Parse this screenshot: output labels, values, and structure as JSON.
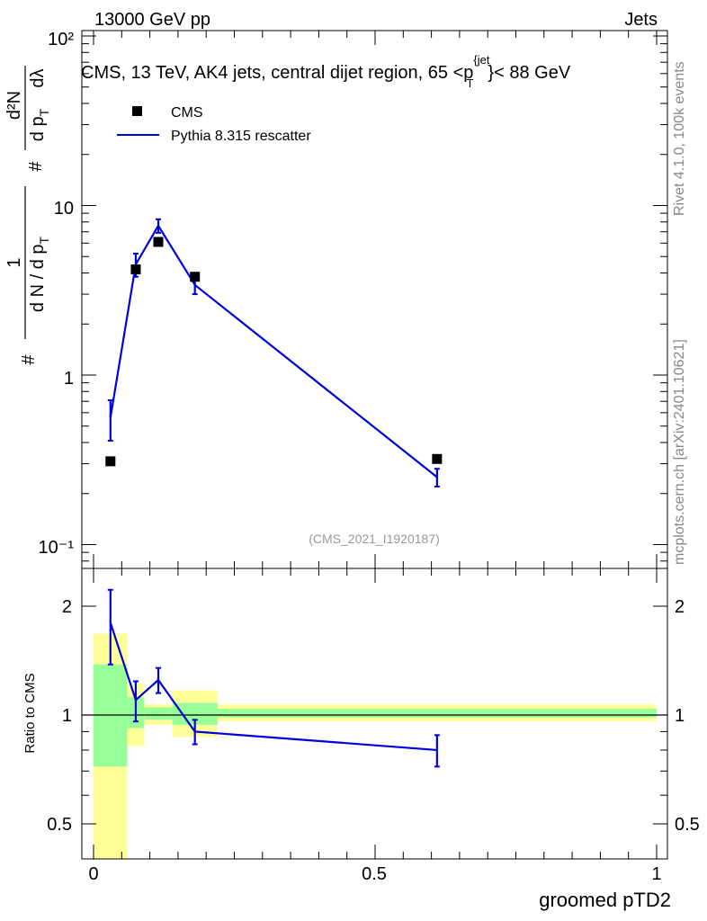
{
  "header": {
    "beam": "13000 GeV pp",
    "category": "Jets",
    "title_prefix": "CMS, 13 TeV, AK4 jets, central dijet region, 65 <",
    "title_p": "p",
    "title_sub": "T",
    "title_sup": "{jet",
    "title_suffix": "}< 88 GeV",
    "analysis_id": "(CMS_2021_I1920187)"
  },
  "side_text": {
    "rivet": "Rivet 4.1.0,  100k events",
    "site": "mcplots.cern.ch [arXiv:2401.10621]"
  },
  "legend": {
    "data_label": "CMS",
    "mc_label": "Pythia 8.315 rescatter"
  },
  "colors": {
    "data": "#000000",
    "mc": "#0000dd",
    "band_inner": "#99ff99",
    "band_outer": "#ffff99"
  },
  "chart_data": [
    {
      "type": "scatter",
      "role": "main",
      "yscale": "log",
      "ylim": [
        0.075,
        105
      ],
      "xlim": [
        -0.02,
        1.02
      ],
      "ytick_labels": [
        "10⁻¹",
        "1",
        "10",
        "10²"
      ],
      "ytick_values": [
        0.1,
        1,
        10,
        100
      ],
      "ylabel_parts": [
        "#",
        "1",
        "d N / d p",
        "T",
        "#",
        "d p",
        "T",
        "d²N",
        "dλ"
      ],
      "series": [
        {
          "name": "CMS",
          "x": [
            0.03,
            0.075,
            0.115,
            0.18,
            0.61
          ],
          "y": [
            0.31,
            4.2,
            6.1,
            3.8,
            0.32
          ]
        },
        {
          "name": "Pythia 8.315 rescatter",
          "x": [
            0.03,
            0.075,
            0.115,
            0.18,
            0.61
          ],
          "y": [
            0.56,
            4.5,
            7.6,
            3.4,
            0.25
          ],
          "err": [
            0.15,
            0.7,
            0.7,
            0.4,
            0.03
          ]
        }
      ]
    },
    {
      "type": "line",
      "role": "ratio",
      "yscale": "log",
      "ylim": [
        0.42,
        2.35
      ],
      "xlim": [
        -0.02,
        1.02
      ],
      "ylabel": "Ratio to CMS",
      "xlabel": "groomed pTD2",
      "xtick_values": [
        0,
        0.5,
        1
      ],
      "xtick_labels": [
        "0",
        "0.5",
        "1"
      ],
      "ytick_values": [
        0.5,
        1,
        2
      ],
      "ytick_labels": [
        "0.5",
        "1",
        "2"
      ],
      "reference_line": 1,
      "bins": [
        {
          "lo": 0.0,
          "hi": 0.06,
          "inner": [
            0.72,
            1.38
          ],
          "outer": [
            0.3,
            1.68
          ]
        },
        {
          "lo": 0.06,
          "hi": 0.09,
          "inner": [
            0.92,
            1.12
          ],
          "outer": [
            0.82,
            1.22
          ]
        },
        {
          "lo": 0.09,
          "hi": 0.14,
          "inner": [
            0.97,
            1.05
          ],
          "outer": [
            0.94,
            1.07
          ]
        },
        {
          "lo": 0.14,
          "hi": 0.22,
          "inner": [
            0.94,
            1.08
          ],
          "outer": [
            0.87,
            1.17
          ]
        },
        {
          "lo": 0.22,
          "hi": 1.0,
          "inner": [
            0.985,
            1.04
          ],
          "outer": [
            0.96,
            1.07
          ]
        }
      ],
      "series": [
        {
          "name": "Pythia 8.315 rescatter",
          "x": [
            0.03,
            0.075,
            0.115,
            0.18,
            0.61
          ],
          "y": [
            1.8,
            1.1,
            1.25,
            0.9,
            0.8
          ],
          "err": [
            0.42,
            0.14,
            0.1,
            0.07,
            0.08
          ]
        }
      ]
    }
  ]
}
